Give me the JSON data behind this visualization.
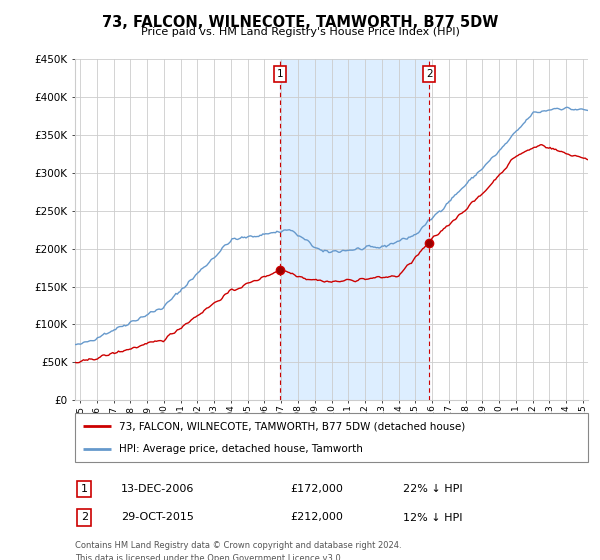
{
  "title": "73, FALCON, WILNECOTE, TAMWORTH, B77 5DW",
  "subtitle": "Price paid vs. HM Land Registry's House Price Index (HPI)",
  "ylim": [
    0,
    450000
  ],
  "yticks": [
    0,
    50000,
    100000,
    150000,
    200000,
    250000,
    300000,
    350000,
    400000,
    450000
  ],
  "sale1": {
    "date": "13-DEC-2006",
    "price": 172000,
    "pct": "22% ↓ HPI",
    "label": "1",
    "year": 2006.95
  },
  "sale2": {
    "date": "29-OCT-2015",
    "price": 212000,
    "pct": "12% ↓ HPI",
    "label": "2",
    "year": 2015.83
  },
  "legend_property": "73, FALCON, WILNECOTE, TAMWORTH, B77 5DW (detached house)",
  "legend_hpi": "HPI: Average price, detached house, Tamworth",
  "footer": "Contains HM Land Registry data © Crown copyright and database right 2024.\nThis data is licensed under the Open Government Licence v3.0.",
  "property_color": "#cc0000",
  "hpi_color": "#6699cc",
  "shading_color": "#ddeeff",
  "dashed_line_color": "#cc0000",
  "grid_color": "#cccccc",
  "xlim_start": 1994.7,
  "xlim_end": 2025.3,
  "xtick_start": 1995,
  "xtick_end": 2025
}
